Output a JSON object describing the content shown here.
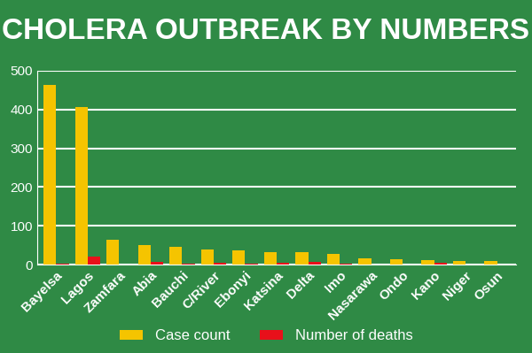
{
  "chart_data": {
    "type": "bar",
    "title": "CHOLERA OUTBREAK BY NUMBERS",
    "categories": [
      "Bayelsa",
      "Lagos",
      "Zamfara",
      "Abia",
      "Bauchi",
      "C/River",
      "Ebonyi",
      "Katsina",
      "Delta",
      "Imo",
      "Nasarawa",
      "Ondo",
      "Kano",
      "Niger",
      "Osun"
    ],
    "series": [
      {
        "name": "Case count",
        "color": "#f5c400",
        "values": [
          462,
          405,
          65,
          50,
          45,
          40,
          37,
          33,
          32,
          27,
          17,
          15,
          12,
          10,
          10
        ]
      },
      {
        "name": "Number of deaths",
        "color": "#e8101a",
        "values": [
          2,
          21,
          1,
          8,
          2,
          4,
          2,
          5,
          7,
          3,
          1,
          1,
          4,
          1,
          0
        ]
      }
    ],
    "ylim": [
      0,
      500
    ],
    "yticks": [
      0,
      100,
      200,
      300,
      400,
      500
    ],
    "grid": true,
    "legend": "lower center"
  }
}
